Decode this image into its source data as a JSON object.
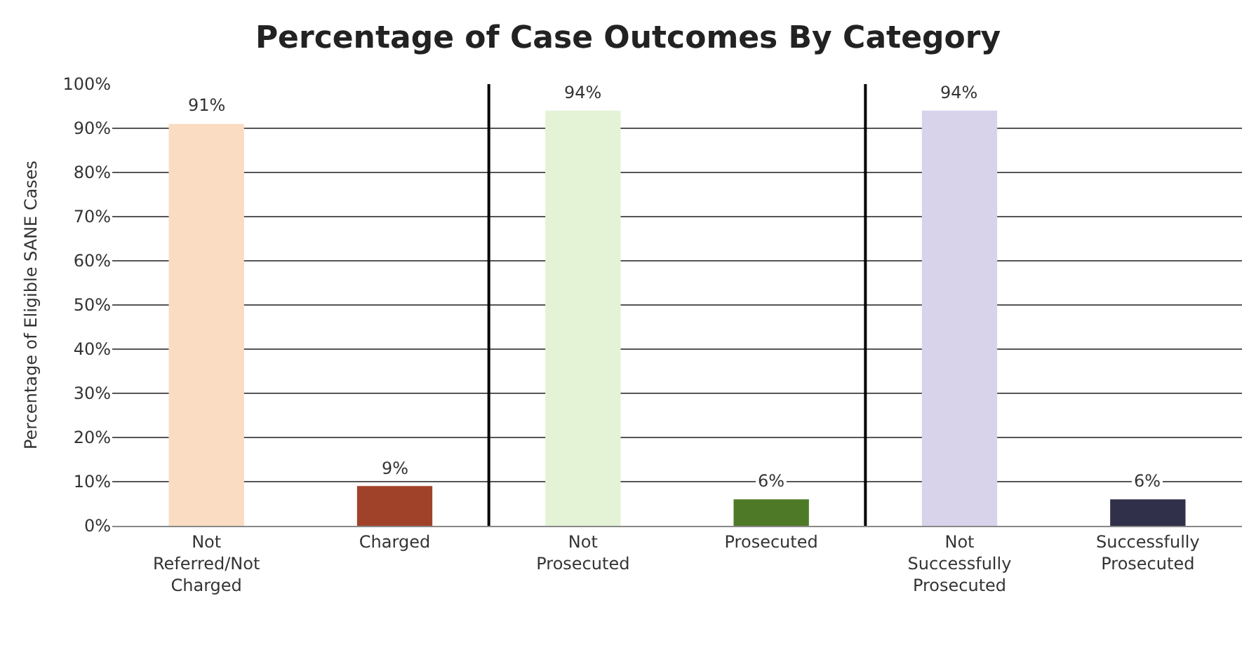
{
  "chart_data": {
    "type": "bar",
    "title": "Percentage of Case Outcomes By Category",
    "ylabel": "Percentage of Eligible SANE Cases",
    "categories": [
      "Not Referred/Not Charged",
      "Charged",
      "Not Prosecuted",
      "Prosecuted",
      "Not Successfully Prosecuted",
      "Successfully Prosecuted"
    ],
    "values": [
      91,
      9,
      94,
      6,
      94,
      6
    ],
    "colors": [
      "#f9dcc2",
      "#a0422a",
      "#e4f2d6",
      "#4e7a28",
      "#d8d2ea",
      "#30304a"
    ],
    "data_labels": true,
    "value_labels": [
      "91%",
      "9%",
      "94%",
      "6%",
      "94%",
      "6%"
    ],
    "ylim": [
      0,
      100
    ],
    "yticks": [
      {
        "value": 0,
        "label": "0%"
      },
      {
        "value": 10,
        "label": "10%"
      },
      {
        "value": 20,
        "label": "20%"
      },
      {
        "value": 30,
        "label": "30%"
      },
      {
        "value": 40,
        "label": "40%"
      },
      {
        "value": 50,
        "label": "50%"
      },
      {
        "value": 60,
        "label": "60%"
      },
      {
        "value": 70,
        "label": "70%"
      },
      {
        "value": 80,
        "label": "80%"
      },
      {
        "value": 90,
        "label": "90%"
      },
      {
        "value": 100,
        "label": "100%"
      }
    ],
    "grid": "y"
  }
}
